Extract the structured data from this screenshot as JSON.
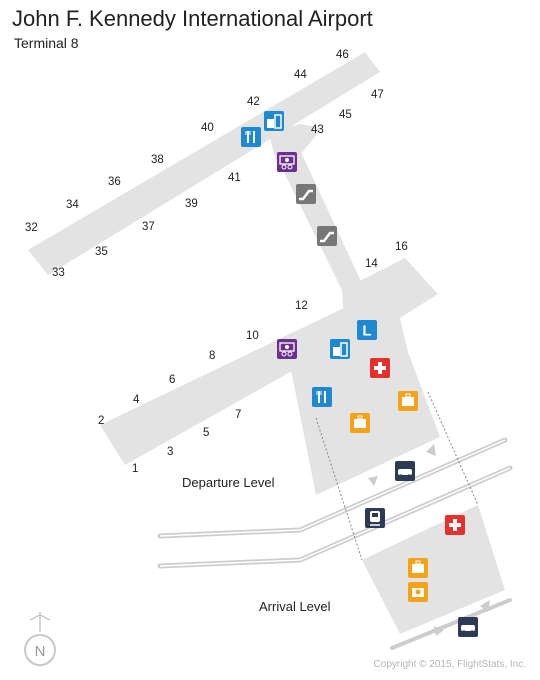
{
  "header": {
    "title": "John F. Kennedy International Airport",
    "subtitle": "Terminal 8"
  },
  "gates": {
    "g1": "1",
    "g2": "2",
    "g3": "3",
    "g4": "4",
    "g5": "5",
    "g6": "6",
    "g7": "7",
    "g8": "8",
    "g10": "10",
    "g12": "12",
    "g14": "14",
    "g16": "16",
    "g32": "32",
    "g33": "33",
    "g34": "34",
    "g35": "35",
    "g36": "36",
    "g37": "37",
    "g38": "38",
    "g39": "39",
    "g40": "40",
    "g41": "41",
    "g42": "42",
    "g43": "43",
    "g44": "44",
    "g45": "45",
    "g46": "46",
    "g47": "47"
  },
  "levels": {
    "departure": "Departure Level",
    "arrival": "Arrival Level"
  },
  "compass": {
    "label": "N"
  },
  "lounge": {
    "letter": "L"
  },
  "colors": {
    "terminal": "#e3e3e3",
    "blue_icon": "#1e88d0",
    "purple_icon": "#6b2f8e",
    "gray_icon": "#777777",
    "red_icon": "#e53030",
    "orange_icon": "#f5a21b",
    "navy_icon": "#2b3a55"
  },
  "icons": [
    "restaurant-icon",
    "shopping-icon",
    "currency-exchange-icon",
    "escalator-icon",
    "lounge-icon",
    "first-aid-icon",
    "baggage-claim-icon",
    "car-rental-icon",
    "airtrain-icon",
    "lost-and-found-icon",
    "taxi-icon",
    "compass-icon"
  ],
  "footer": {
    "copyright": "Copyright © 2015, FlightStats, Inc."
  }
}
